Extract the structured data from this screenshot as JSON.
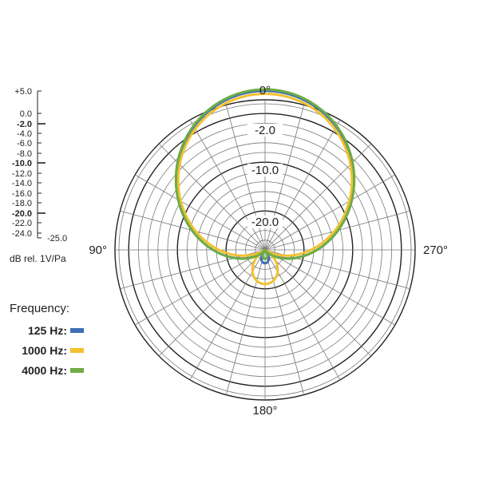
{
  "chart_data": {
    "type": "polar-line",
    "title": "",
    "angle_labels": [
      {
        "angle": 0,
        "text": "0°"
      },
      {
        "angle": 90,
        "text": "90°"
      },
      {
        "angle": 180,
        "text": "180°"
      },
      {
        "angle": 270,
        "text": "270°"
      }
    ],
    "ring_labels": [
      "-2.0",
      "-10.0",
      "-20.0"
    ],
    "db_scale": {
      "ticks": [
        "+5.0",
        "0.0",
        "-2.0",
        "-4.0",
        "-6.0",
        "-8.0",
        "-10.0",
        "-12.0",
        "-14.0",
        "-16.0",
        "-18.0",
        "-20.0",
        "-22.0",
        "-24.0"
      ],
      "bottom_label": "-25.0",
      "major": [
        "-2.0",
        "-10.0",
        "-20.0"
      ],
      "range": [
        -25,
        5
      ],
      "unit_label": "dB rel. 1V/Pa"
    },
    "legend_title": "Frequency:",
    "series": [
      {
        "name": "125 Hz:",
        "color": "#3f6fb5"
      },
      {
        "name": "1000 Hz:",
        "color": "#f3c12e"
      },
      {
        "name": "4000 Hz:",
        "color": "#6fad45"
      }
    ]
  }
}
